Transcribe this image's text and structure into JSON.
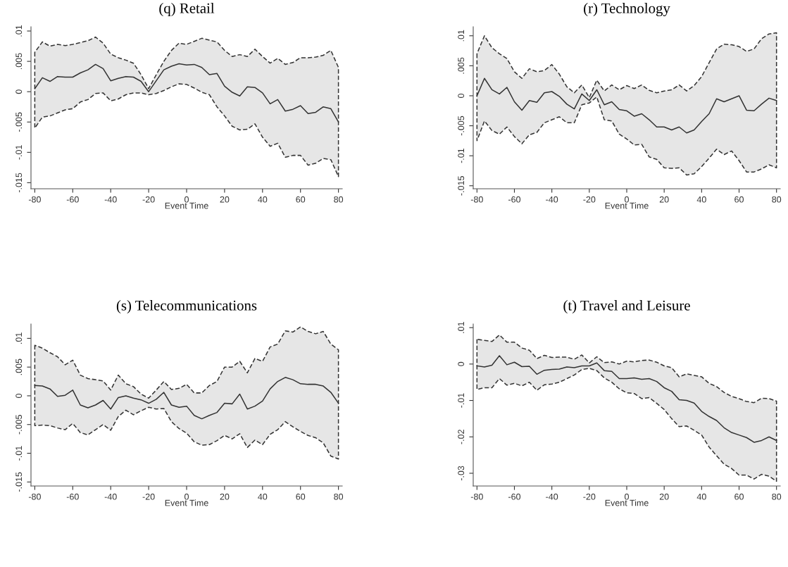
{
  "chart_data": [
    {
      "type": "line",
      "title": "(q) Retail",
      "xlabel": "Event Time",
      "xlim": [
        -82,
        82
      ],
      "xticks": [
        -80,
        -60,
        -40,
        -20,
        0,
        20,
        40,
        60,
        80
      ],
      "ylim": [
        -0.016,
        0.0107
      ],
      "yticks": [
        {
          "value": -0.015,
          "label": "-.015"
        },
        {
          "value": -0.01,
          "label": "-.01"
        },
        {
          "value": -0.005,
          "label": "-.005"
        },
        {
          "value": 0,
          "label": "0"
        },
        {
          "value": 0.005,
          "label": ".005"
        },
        {
          "value": 0.01,
          "label": ".01"
        }
      ],
      "grid": false,
      "series": [
        {
          "line_style": "solid",
          "color": "#333333",
          "x": [
            -80,
            -76,
            -72,
            -68,
            -64,
            -60,
            -56,
            -52,
            -48,
            -44,
            -40,
            -36,
            -32,
            -28,
            -24,
            -20,
            -16,
            -12,
            -8,
            -4,
            0,
            4,
            8,
            12,
            16,
            20,
            24,
            28,
            32,
            36,
            40,
            44,
            48,
            52,
            56,
            60,
            64,
            68,
            72,
            76,
            80
          ],
          "values": [
            0.0005,
            0.0023,
            0.0017,
            0.0025,
            0.0024,
            0.0024,
            0.0031,
            0.0036,
            0.0045,
            0.0038,
            0.0018,
            0.0022,
            0.0025,
            0.0024,
            0.0017,
            0.0,
            0.0018,
            0.0036,
            0.0042,
            0.0046,
            0.0044,
            0.0045,
            0.004,
            0.0028,
            0.003,
            0.0009,
            -0.0001,
            -0.0007,
            0.0008,
            0.0007,
            -0.0002,
            -0.002,
            -0.0013,
            -0.0032,
            -0.0029,
            -0.0023,
            -0.0036,
            -0.0034,
            -0.0025,
            -0.0028,
            -0.005
          ],
          "upper": [
            0.0065,
            0.0082,
            0.0075,
            0.0078,
            0.0076,
            0.0078,
            0.0081,
            0.0084,
            0.009,
            0.008,
            0.0062,
            0.0056,
            0.0052,
            0.0047,
            0.0028,
            0.0005,
            0.0028,
            0.005,
            0.0068,
            0.008,
            0.0078,
            0.0083,
            0.0088,
            0.0085,
            0.0082,
            0.0068,
            0.0058,
            0.0061,
            0.0058,
            0.007,
            0.0058,
            0.0047,
            0.0055,
            0.0045,
            0.0048,
            0.0056,
            0.0056,
            0.0057,
            0.006,
            0.0068,
            0.004
          ],
          "lower": [
            -0.006,
            -0.0042,
            -0.004,
            -0.0035,
            -0.003,
            -0.0028,
            -0.0017,
            -0.0013,
            -0.0003,
            -0.0002,
            -0.0015,
            -0.0012,
            -0.0005,
            -0.0002,
            -0.0002,
            -0.0005,
            -0.0003,
            0.0002,
            0.0008,
            0.0013,
            0.0012,
            0.0006,
            -0.0001,
            -0.0005,
            -0.0025,
            -0.004,
            -0.0057,
            -0.0063,
            -0.0062,
            -0.0053,
            -0.0075,
            -0.009,
            -0.0085,
            -0.0108,
            -0.0105,
            -0.0105,
            -0.0121,
            -0.0118,
            -0.011,
            -0.0112,
            -0.014
          ]
        }
      ]
    },
    {
      "type": "line",
      "title": "(r) Technology",
      "xlabel": "Event Time",
      "xlim": [
        -82,
        82
      ],
      "xticks": [
        -80,
        -60,
        -40,
        -20,
        0,
        20,
        40,
        60,
        80
      ],
      "ylim": [
        -0.0155,
        0.0115
      ],
      "yticks": [
        {
          "value": -0.015,
          "label": "-.015"
        },
        {
          "value": -0.01,
          "label": "-.01"
        },
        {
          "value": -0.005,
          "label": "-.005"
        },
        {
          "value": 0,
          "label": "0"
        },
        {
          "value": 0.005,
          "label": ".005"
        },
        {
          "value": 0.01,
          "label": ".01"
        }
      ],
      "grid": false,
      "series": [
        {
          "line_style": "solid",
          "color": "#333333",
          "x": [
            -80,
            -76,
            -72,
            -68,
            -64,
            -60,
            -56,
            -52,
            -48,
            -44,
            -40,
            -36,
            -32,
            -28,
            -24,
            -20,
            -16,
            -12,
            -8,
            -4,
            0,
            4,
            8,
            12,
            16,
            20,
            24,
            28,
            32,
            36,
            40,
            44,
            48,
            52,
            56,
            60,
            64,
            68,
            72,
            76,
            80
          ],
          "values": [
            0.0,
            0.0029,
            0.001,
            0.0003,
            0.0014,
            -0.001,
            -0.0024,
            -0.0008,
            -0.0011,
            0.0005,
            0.0007,
            -0.0001,
            -0.0014,
            -0.0022,
            0.0003,
            -0.0008,
            0.001,
            -0.0015,
            -0.001,
            -0.0023,
            -0.0025,
            -0.0034,
            -0.003,
            -0.004,
            -0.0052,
            -0.0052,
            -0.0057,
            -0.0052,
            -0.0062,
            -0.0057,
            -0.0043,
            -0.003,
            -0.0005,
            -0.001,
            -0.0005,
            0.0,
            -0.0024,
            -0.0025,
            -0.0014,
            -0.0004,
            -0.0008
          ],
          "upper": [
            0.007,
            0.01,
            0.008,
            0.007,
            0.0062,
            0.004,
            0.0029,
            0.0045,
            0.004,
            0.0042,
            0.0052,
            0.0036,
            0.0015,
            0.0005,
            0.0018,
            -0.0003,
            0.0026,
            0.0008,
            0.0018,
            0.001,
            0.0017,
            0.0012,
            0.0018,
            0.0009,
            0.0005,
            0.0008,
            0.001,
            0.0018,
            0.0008,
            0.0017,
            0.0032,
            0.0055,
            0.0078,
            0.0086,
            0.0085,
            0.0082,
            0.0074,
            0.0078,
            0.0095,
            0.0103,
            0.0105
          ],
          "lower": [
            -0.0075,
            -0.0042,
            -0.0058,
            -0.0064,
            -0.0052,
            -0.0068,
            -0.008,
            -0.0065,
            -0.0061,
            -0.0045,
            -0.004,
            -0.0035,
            -0.0045,
            -0.0045,
            -0.0015,
            -0.0012,
            -0.0002,
            -0.004,
            -0.0042,
            -0.0064,
            -0.0072,
            -0.0082,
            -0.0081,
            -0.0102,
            -0.0106,
            -0.012,
            -0.0121,
            -0.012,
            -0.0132,
            -0.013,
            -0.0118,
            -0.0104,
            -0.0089,
            -0.0098,
            -0.0092,
            -0.0108,
            -0.0127,
            -0.0127,
            -0.0122,
            -0.0115,
            -0.012
          ]
        }
      ]
    },
    {
      "type": "line",
      "title": "(s) Telecommunications",
      "xlabel": "Event Time",
      "xlim": [
        -82,
        82
      ],
      "xticks": [
        -80,
        -60,
        -40,
        -20,
        0,
        20,
        40,
        60,
        80
      ],
      "ylim": [
        -0.0157,
        0.0125
      ],
      "yticks": [
        {
          "value": -0.015,
          "label": "-.015"
        },
        {
          "value": -0.01,
          "label": "-.01"
        },
        {
          "value": -0.005,
          "label": "-.005"
        },
        {
          "value": 0,
          "label": "0"
        },
        {
          "value": 0.005,
          "label": ".005"
        },
        {
          "value": 0.01,
          "label": ".01"
        }
      ],
      "grid": false,
      "series": [
        {
          "line_style": "solid",
          "color": "#333333",
          "x": [
            -80,
            -76,
            -72,
            -68,
            -64,
            -60,
            -56,
            -52,
            -48,
            -44,
            -40,
            -36,
            -32,
            -28,
            -24,
            -20,
            -16,
            -12,
            -8,
            -4,
            0,
            4,
            8,
            12,
            16,
            20,
            24,
            28,
            32,
            36,
            40,
            44,
            48,
            52,
            56,
            60,
            64,
            68,
            72,
            76,
            80
          ],
          "values": [
            0.0018,
            0.0017,
            0.0012,
            -0.0001,
            0.0001,
            0.001,
            -0.0016,
            -0.0021,
            -0.0016,
            -0.0008,
            -0.0023,
            -0.0003,
            0.0,
            -0.0004,
            -0.0007,
            -0.0013,
            -0.0006,
            0.0006,
            -0.0016,
            -0.002,
            -0.0018,
            -0.0034,
            -0.004,
            -0.0034,
            -0.0029,
            -0.0013,
            -0.0014,
            0.0003,
            -0.0023,
            -0.0018,
            -0.0009,
            0.0012,
            0.0025,
            0.0032,
            0.0028,
            0.0021,
            0.002,
            0.002,
            0.0017,
            0.0006,
            -0.0013
          ],
          "upper": [
            0.0088,
            0.0083,
            0.0075,
            0.0068,
            0.0054,
            0.0062,
            0.0036,
            0.003,
            0.0028,
            0.0026,
            0.001,
            0.0036,
            0.0021,
            0.0016,
            0.0003,
            -0.0004,
            0.001,
            0.0025,
            0.0011,
            0.0013,
            0.002,
            0.0005,
            0.0005,
            0.0018,
            0.0025,
            0.005,
            0.005,
            0.006,
            0.004,
            0.0065,
            0.006,
            0.0085,
            0.009,
            0.0113,
            0.0111,
            0.012,
            0.0112,
            0.0108,
            0.0112,
            0.009,
            0.008
          ],
          "lower": [
            -0.0052,
            -0.0051,
            -0.0052,
            -0.0056,
            -0.0059,
            -0.0048,
            -0.0064,
            -0.0068,
            -0.0059,
            -0.005,
            -0.006,
            -0.0036,
            -0.0025,
            -0.0033,
            -0.0026,
            -0.002,
            -0.0023,
            -0.0022,
            -0.0045,
            -0.0057,
            -0.0065,
            -0.008,
            -0.0086,
            -0.0085,
            -0.0078,
            -0.0069,
            -0.0075,
            -0.0066,
            -0.009,
            -0.0077,
            -0.0085,
            -0.0067,
            -0.0059,
            -0.0045,
            -0.0054,
            -0.0062,
            -0.0069,
            -0.0073,
            -0.0082,
            -0.0105,
            -0.011
          ]
        }
      ]
    },
    {
      "type": "line",
      "title": "(t) Travel and Leisure",
      "xlabel": "Event Time",
      "xlim": [
        -82,
        82
      ],
      "xticks": [
        -80,
        -60,
        -40,
        -20,
        0,
        20,
        40,
        60,
        80
      ],
      "ylim": [
        -0.0335,
        0.011
      ],
      "yticks": [
        {
          "value": -0.03,
          "label": "-.03"
        },
        {
          "value": -0.02,
          "label": "-.02"
        },
        {
          "value": -0.01,
          "label": "-.01"
        },
        {
          "value": 0,
          "label": "0"
        },
        {
          "value": 0.01,
          "label": ".01"
        }
      ],
      "grid": false,
      "series": [
        {
          "line_style": "solid",
          "color": "#333333",
          "x": [
            -80,
            -76,
            -72,
            -68,
            -64,
            -60,
            -56,
            -52,
            -48,
            -44,
            -40,
            -36,
            -32,
            -28,
            -24,
            -20,
            -16,
            -12,
            -8,
            -4,
            0,
            4,
            8,
            12,
            16,
            20,
            24,
            28,
            32,
            36,
            40,
            44,
            48,
            52,
            56,
            60,
            64,
            68,
            72,
            76,
            80
          ],
          "values": [
            -0.0005,
            -0.0008,
            -0.0003,
            0.0023,
            -0.0002,
            0.0005,
            -0.0007,
            -0.0006,
            -0.0028,
            -0.0017,
            -0.0015,
            -0.0014,
            -0.0008,
            -0.001,
            -0.0005,
            -0.0005,
            0.0003,
            -0.0018,
            -0.002,
            -0.004,
            -0.004,
            -0.0038,
            -0.0042,
            -0.004,
            -0.0048,
            -0.0065,
            -0.0075,
            -0.0098,
            -0.01,
            -0.0107,
            -0.013,
            -0.0144,
            -0.0155,
            -0.0175,
            -0.0188,
            -0.0195,
            -0.0202,
            -0.0215,
            -0.021,
            -0.02,
            -0.021
          ],
          "upper": [
            0.0068,
            0.0065,
            0.0062,
            0.008,
            0.006,
            0.006,
            0.0044,
            0.0038,
            0.0015,
            0.0024,
            0.0018,
            0.0019,
            0.0019,
            0.0013,
            0.0025,
            0.0003,
            0.002,
            0.0004,
            0.0006,
            0.0,
            0.0008,
            0.0006,
            0.001,
            0.0011,
            0.0005,
            -0.0005,
            -0.001,
            -0.0035,
            -0.0027,
            -0.0031,
            -0.0035,
            -0.0053,
            -0.0062,
            -0.0078,
            -0.0089,
            -0.0095,
            -0.0103,
            -0.0106,
            -0.0094,
            -0.0095,
            -0.0102
          ],
          "lower": [
            -0.007,
            -0.0065,
            -0.0065,
            -0.004,
            -0.0058,
            -0.0053,
            -0.006,
            -0.005,
            -0.0072,
            -0.0057,
            -0.0055,
            -0.005,
            -0.004,
            -0.003,
            -0.0015,
            -0.0012,
            -0.0018,
            -0.0038,
            -0.005,
            -0.0068,
            -0.0079,
            -0.0081,
            -0.0095,
            -0.0092,
            -0.0108,
            -0.0125,
            -0.015,
            -0.0172,
            -0.017,
            -0.0182,
            -0.0195,
            -0.0228,
            -0.0252,
            -0.0275,
            -0.0287,
            -0.0305,
            -0.0305,
            -0.0316,
            -0.0303,
            -0.0308,
            -0.0322
          ]
        }
      ]
    }
  ]
}
